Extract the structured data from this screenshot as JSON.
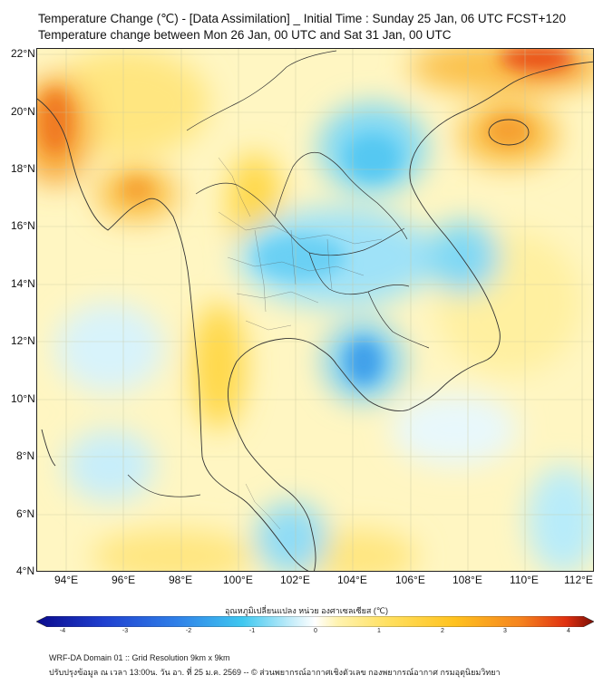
{
  "title": {
    "line1": "Temperature Change (℃) - [Data Assimilation] _ Initial Time : Sunday 25 Jan, 06 UTC FCST+120",
    "line2": "Temperature change between Mon 26 Jan, 00 UTC and Sat 31 Jan, 00 UTC"
  },
  "map": {
    "region": "Mainland Southeast Asia (Thailand centered)",
    "lat_ticks": [
      "22°N",
      "20°N",
      "18°N",
      "16°N",
      "14°N",
      "12°N",
      "10°N",
      "8°N",
      "6°N",
      "4°N"
    ],
    "lon_ticks": [
      "94°E",
      "96°E",
      "98°E",
      "100°E",
      "102°E",
      "104°E",
      "106°E",
      "108°E",
      "110°E",
      "112°E"
    ]
  },
  "colorbar": {
    "title": "อุณหภูมิเปลี่ยนแปลง หน่วย องศาเซลเซียส (℃)",
    "ticks": [
      "-4",
      "-3",
      "-2",
      "-1",
      "0",
      "1",
      "2",
      "3",
      "4"
    ],
    "min": -4,
    "max": 4,
    "colors": {
      "cold_max": "#0a0a8c",
      "cold": "#2f66e0",
      "cool": "#3fc8f0",
      "cool_light": "#a8e6f8",
      "neutral": "#ffffff",
      "warm_light": "#fff3b0",
      "warm": "#ffd21e",
      "hot": "#f5821e",
      "hot_max": "#7a0f05"
    }
  },
  "footer": {
    "line1": "WRF-DA Domain 01 :: Grid Resolution 9km x 9km",
    "line2": "ปรับปรุงข้อมูล ณ เวลา 13:00น. วัน อา. ที่ 25 ม.ค. 2569 -- © ส่วนพยากรณ์อากาศเชิงตัวเลข กองพยากรณ์อากาศ กรมอุตุนิยมวิทยา"
  }
}
